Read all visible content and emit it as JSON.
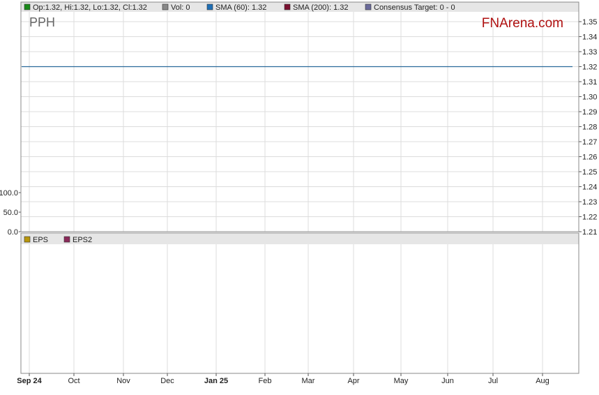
{
  "legend_top": [
    {
      "label": "Op:1.32, Hi:1.32, Lo:1.32, Cl:1.32",
      "color": "#1a8a1a"
    },
    {
      "label": "Vol: 0",
      "color": "#888888"
    },
    {
      "label": "SMA (60): 1.32",
      "color": "#1f6fb5"
    },
    {
      "label": "SMA (200): 1.32",
      "color": "#7a1030"
    },
    {
      "label": "Consensus Target: 0 - 0",
      "color": "#6a6a9a"
    }
  ],
  "legend_bottom": [
    {
      "label": "EPS",
      "color": "#b8960c"
    },
    {
      "label": "EPS2",
      "color": "#8a2a5a"
    }
  ],
  "ticker": "PPH",
  "brand": "FNArena.com",
  "colors": {
    "brand": "#b01010",
    "ticker": "#666666",
    "price_line": "#2a6a9a"
  },
  "chart_data": {
    "type": "line",
    "title": "",
    "x_ticks": [
      "Sep 24",
      "Oct",
      "Nov",
      "Dec",
      "Jan 25",
      "Feb",
      "Mar",
      "Apr",
      "May",
      "Jun",
      "Jul",
      "Aug"
    ],
    "x_ticks_bold": [
      "Sep 24",
      "Jan 25"
    ],
    "y_ticks": [
      "1.35",
      "1.34",
      "1.33",
      "1.32",
      "1.31",
      "1.30",
      "1.29",
      "1.28",
      "1.27",
      "1.26",
      "1.25",
      "1.24",
      "1.23",
      "1.22",
      "1.21"
    ],
    "ylim": [
      1.21,
      1.355
    ],
    "volume_ticks": [
      "100.0",
      "50.0",
      "0.0"
    ],
    "volume_ylim": [
      0,
      100
    ],
    "series": [
      {
        "values": [
          1.32,
          1.32,
          1.32,
          1.32,
          1.32,
          1.32,
          1.32,
          1.32,
          1.32,
          1.32,
          1.32,
          1.32,
          1.32
        ]
      }
    ],
    "grid": true
  }
}
